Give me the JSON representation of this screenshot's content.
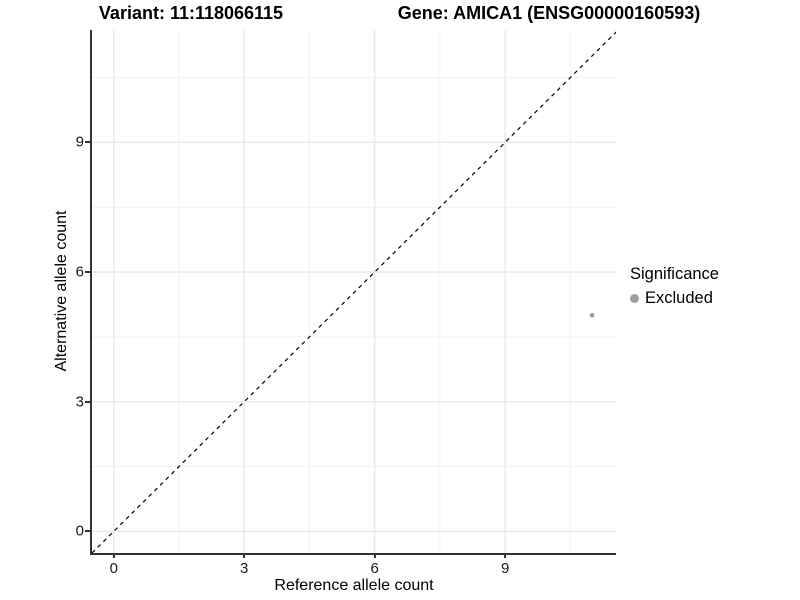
{
  "chart_data": {
    "type": "scatter",
    "title_variant": "Variant: 11:118066115",
    "title_gene": "Gene: AMICA1 (ENSG00000160593)",
    "xlabel": "Reference allele count",
    "ylabel": "Alternative allele count",
    "x_ticks": [
      0,
      3,
      6,
      9
    ],
    "y_ticks": [
      0,
      3,
      6,
      9
    ],
    "x_minor_ticks": [
      1.5,
      4.5,
      7.5,
      10.5
    ],
    "y_minor_ticks": [
      1.5,
      4.5,
      7.5,
      10.5
    ],
    "x_range": [
      -0.5,
      11.55
    ],
    "y_range": [
      -0.5,
      11.6
    ],
    "grid": true,
    "identity_line": {
      "style": "dashed",
      "from": -0.5,
      "to": 11.6
    },
    "points": [
      {
        "x": 11,
        "y": 5,
        "significance": "Excluded",
        "radius": 2.4
      }
    ],
    "legend": {
      "title": "Significance",
      "position": "right",
      "items": [
        {
          "label": "Excluded",
          "color": "#9e9e9e"
        }
      ]
    },
    "colors": {
      "point": "#9e9e9e",
      "grid_major": "#e8e8e8",
      "grid_minor": "#f2f2f2",
      "axis_line": "#333333",
      "identity_line": "#000000",
      "text": "#000000"
    }
  }
}
